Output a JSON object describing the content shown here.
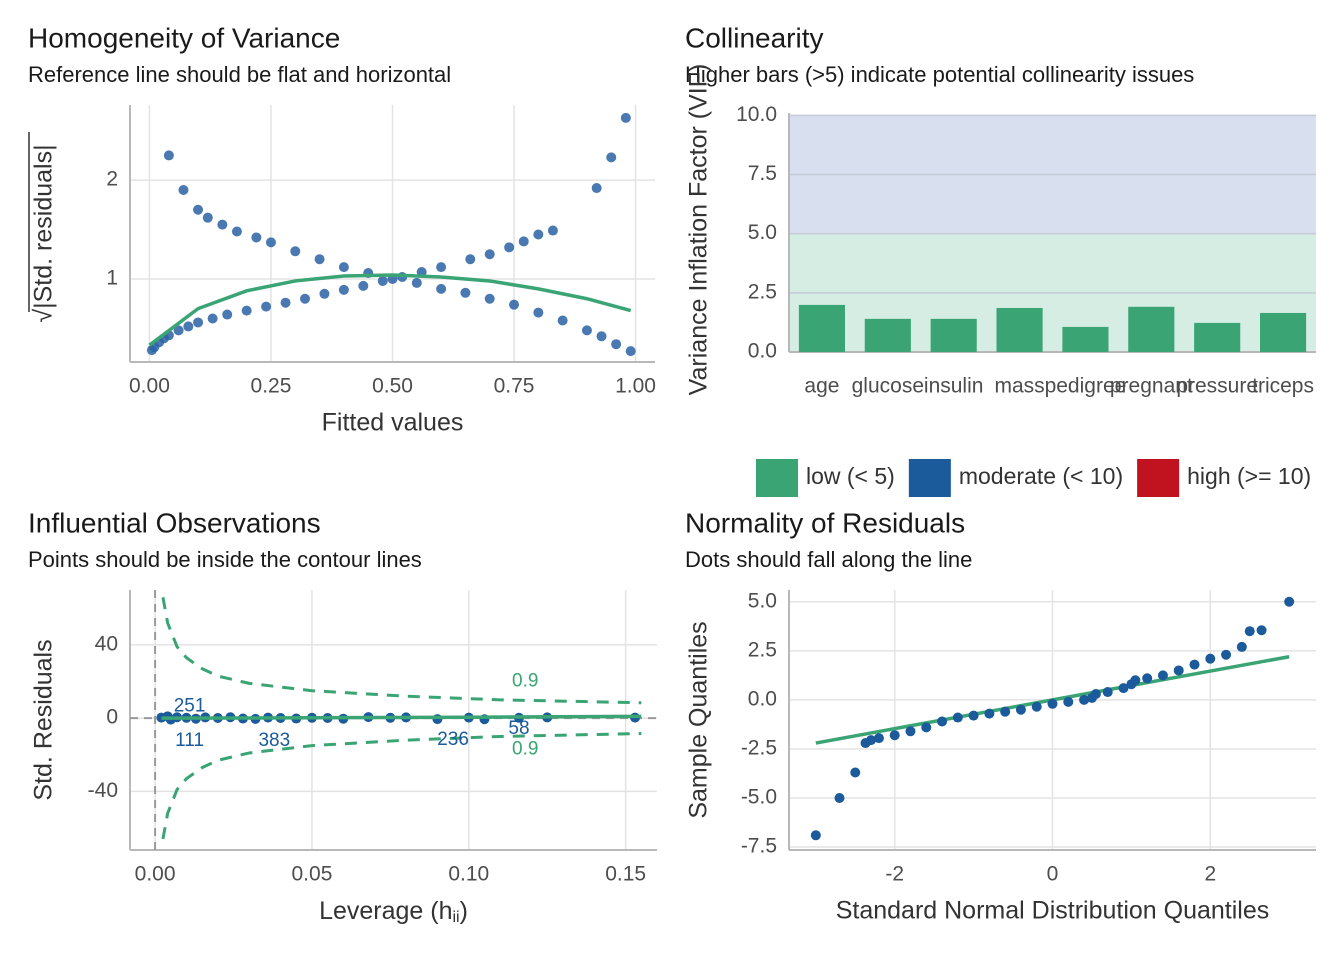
{
  "chart_data": [
    {
      "type": "scatter",
      "title": "Homogeneity of Variance",
      "subtitle": "Reference line should be flat and horizontal",
      "x_label": "Fitted values",
      "y_label": "√|Std. residuals|",
      "xlim": [
        -0.04,
        1.04
      ],
      "ylim": [
        0.16,
        2.76
      ],
      "xticks": [
        {
          "value": 0,
          "label": "0.00"
        },
        0.25,
        {
          "value": 0.5,
          "label": "0.50"
        },
        0.75,
        {
          "value": 1,
          "label": "1.00"
        }
      ],
      "yticks": [
        1,
        2
      ],
      "grid": true,
      "series": [
        {
          "style": "points",
          "color": "#2a62a4",
          "x": [
            0.005,
            0.01,
            0.02,
            0.03,
            0.04,
            0.06,
            0.08,
            0.1,
            0.13,
            0.16,
            0.2,
            0.24,
            0.28,
            0.32,
            0.36,
            0.4,
            0.44,
            0.48,
            0.52,
            0.56,
            0.6,
            0.66,
            0.7,
            0.74,
            0.77,
            0.8,
            0.83,
            0.92,
            0.95,
            0.98,
            0.04,
            0.07,
            0.1,
            0.12,
            0.15,
            0.18,
            0.22,
            0.25,
            0.3,
            0.35,
            0.4,
            0.45,
            0.5,
            0.55,
            0.6,
            0.65,
            0.7,
            0.75,
            0.8,
            0.85,
            0.9,
            0.93,
            0.96,
            0.99
          ],
          "y": [
            0.28,
            0.31,
            0.36,
            0.4,
            0.43,
            0.48,
            0.52,
            0.56,
            0.6,
            0.64,
            0.68,
            0.72,
            0.76,
            0.8,
            0.85,
            0.89,
            0.93,
            0.98,
            1.02,
            1.07,
            1.12,
            1.2,
            1.25,
            1.32,
            1.38,
            1.45,
            1.49,
            1.92,
            2.23,
            2.63,
            2.25,
            1.9,
            1.7,
            1.62,
            1.55,
            1.48,
            1.42,
            1.37,
            1.28,
            1.2,
            1.12,
            1.06,
            1.0,
            0.96,
            0.9,
            0.86,
            0.8,
            0.74,
            0.66,
            0.58,
            0.48,
            0.42,
            0.34,
            0.27
          ]
        },
        {
          "style": "line",
          "color": "#3aa474",
          "x": [
            0,
            0.1,
            0.2,
            0.3,
            0.4,
            0.5,
            0.6,
            0.7,
            0.8,
            0.9,
            0.99
          ],
          "y": [
            0.33,
            0.7,
            0.88,
            0.98,
            1.03,
            1.04,
            1.02,
            0.98,
            0.9,
            0.8,
            0.68
          ]
        }
      ]
    },
    {
      "type": "bar",
      "title": "Collinearity",
      "subtitle": "Higher bars (>5) indicate potential collinearity issues",
      "y_label": "Variance Inflation Factor (VIF)",
      "categories": [
        "age",
        "glucose",
        "insulin",
        "mass",
        "pedigree",
        "pregnant",
        "pressure",
        "triceps"
      ],
      "values": [
        1.99,
        1.4,
        1.4,
        1.86,
        1.06,
        1.91,
        1.23,
        1.65
      ],
      "color": "#3aa474",
      "ylim": [
        0,
        10.1
      ],
      "yticks": [
        {
          "value": 0,
          "label": "0.0"
        },
        2.5,
        {
          "value": 5,
          "label": "5.0"
        },
        7.5,
        {
          "value": 10,
          "label": "10.0"
        }
      ],
      "grid": true,
      "bands": [
        {
          "from": 0,
          "to": 5,
          "color": "#d5ede3"
        },
        {
          "from": 5,
          "to": 10,
          "color": "#d8dfee"
        }
      ],
      "legend": [
        {
          "name": "low (< 5)",
          "color": "#3aa474"
        },
        {
          "name": "moderate (< 10)",
          "color": "#1b5a9b"
        },
        {
          "name": "high (>= 10)",
          "color": "#c1121f"
        }
      ]
    },
    {
      "type": "scatter",
      "title": "Influential Observations",
      "subtitle": "Points should be inside the contour lines",
      "x_label": [
        "Leverage (h",
        "ii",
        ")"
      ],
      "y_label": "Std. Residuals",
      "xlim": [
        -0.008,
        0.16
      ],
      "ylim": [
        -72,
        70
      ],
      "xticks": [
        {
          "value": 0,
          "label": "0.00"
        },
        0.05,
        {
          "value": 0.1,
          "label": "0.10"
        },
        0.15
      ],
      "yticks": [
        -40,
        0,
        40
      ],
      "grid": true,
      "vline": 0,
      "hline": 0,
      "series": [
        {
          "style": "points",
          "color": "#1b5a9b",
          "x": [
            0.002,
            0.004,
            0.005,
            0.007,
            0.01,
            0.013,
            0.016,
            0.02,
            0.024,
            0.028,
            0.032,
            0.036,
            0.04,
            0.045,
            0.05,
            0.055,
            0.06,
            0.068,
            0.075,
            0.08,
            0.09,
            0.1,
            0.105,
            0.116,
            0.125,
            0.153
          ],
          "y": [
            0.3,
            1,
            -0.8,
            0.5,
            0.2,
            -0.3,
            0.4,
            0.1,
            0.5,
            -0.2,
            -0.4,
            0.3,
            0.1,
            -0.2,
            0.2,
            0.1,
            -0.3,
            0.6,
            0.2,
            0.4,
            -0.5,
            0.3,
            -0.6,
            0.2,
            0.4,
            0.3
          ]
        },
        {
          "style": "line",
          "color": "#3aa474",
          "x": [
            0.002,
            0.05,
            0.1,
            0.155
          ],
          "y": [
            0,
            0.2,
            0.5,
            1
          ]
        },
        {
          "style": "dashed",
          "color": "#3aa474",
          "x": [
            0.0025,
            0.004,
            0.007,
            0.01,
            0.015,
            0.02,
            0.03,
            0.05,
            0.08,
            0.11,
            0.155
          ],
          "y": [
            66,
            52,
            39,
            33,
            27,
            23,
            19,
            15,
            12,
            10,
            8.4
          ]
        },
        {
          "style": "dashed",
          "color": "#3aa474",
          "x": [
            0.0025,
            0.004,
            0.007,
            0.01,
            0.015,
            0.02,
            0.03,
            0.05,
            0.08,
            0.11,
            0.155
          ],
          "y": [
            -66,
            -52,
            -39,
            -33,
            -27,
            -23,
            -19,
            -15,
            -12,
            -10,
            -8.4
          ]
        }
      ],
      "annotations": [
        {
          "text": "251",
          "x": 0.011,
          "y": 6.5,
          "color": "#1b5a9b"
        },
        {
          "text": "111",
          "x": 0.011,
          "y": -12.5,
          "color": "#1b5a9b"
        },
        {
          "text": "383",
          "x": 0.038,
          "y": -12.5,
          "color": "#1b5a9b"
        },
        {
          "text": "236",
          "x": 0.095,
          "y": -12,
          "color": "#1b5a9b"
        },
        {
          "text": "58",
          "x": 0.116,
          "y": -6,
          "color": "#1b5a9b"
        },
        {
          "text": "0.9",
          "x": 0.118,
          "y": 20,
          "color": "#3aa474"
        },
        {
          "text": "0.9",
          "x": 0.118,
          "y": -17,
          "color": "#3aa474"
        }
      ]
    },
    {
      "type": "scatter",
      "title": "Normality of Residuals",
      "subtitle": "Dots should fall along the line",
      "x_label": "Standard Normal Distribution Quantiles",
      "y_label": "Sample Quantiles",
      "xlim": [
        -3.34,
        3.34
      ],
      "ylim": [
        -7.65,
        5.6
      ],
      "xticks": [
        -2,
        0,
        2
      ],
      "yticks": [
        -7.5,
        {
          "value": -5,
          "label": "-5.0"
        },
        -2.5,
        {
          "value": 0,
          "label": "0.0"
        },
        2.5,
        {
          "value": 5,
          "label": "5.0"
        }
      ],
      "grid": true,
      "series": [
        {
          "style": "line",
          "color": "#3aa474",
          "x": [
            -3,
            3
          ],
          "y": [
            -2.2,
            2.2
          ]
        },
        {
          "style": "points",
          "color": "#1b5a9b",
          "x": [
            -3.0,
            -2.7,
            -2.5,
            -2.37,
            -2.3,
            -2.2,
            -2.0,
            -1.8,
            -1.6,
            -1.4,
            -1.2,
            -1.0,
            -0.8,
            -0.6,
            -0.4,
            -0.2,
            0,
            0.2,
            0.4,
            0.5,
            0.55,
            0.7,
            0.9,
            1.0,
            1.05,
            1.2,
            1.4,
            1.6,
            1.8,
            2.0,
            2.2,
            2.4,
            2.5,
            2.65,
            3.0
          ],
          "y": [
            -6.9,
            -5.0,
            -3.7,
            -2.2,
            -2.05,
            -1.95,
            -1.8,
            -1.6,
            -1.4,
            -1.1,
            -0.9,
            -0.8,
            -0.7,
            -0.6,
            -0.5,
            -0.35,
            -0.2,
            -0.1,
            0.0,
            0.1,
            0.3,
            0.4,
            0.6,
            0.8,
            1.0,
            1.1,
            1.25,
            1.5,
            1.8,
            2.1,
            2.3,
            2.7,
            3.5,
            3.55,
            5.0
          ]
        }
      ]
    }
  ]
}
